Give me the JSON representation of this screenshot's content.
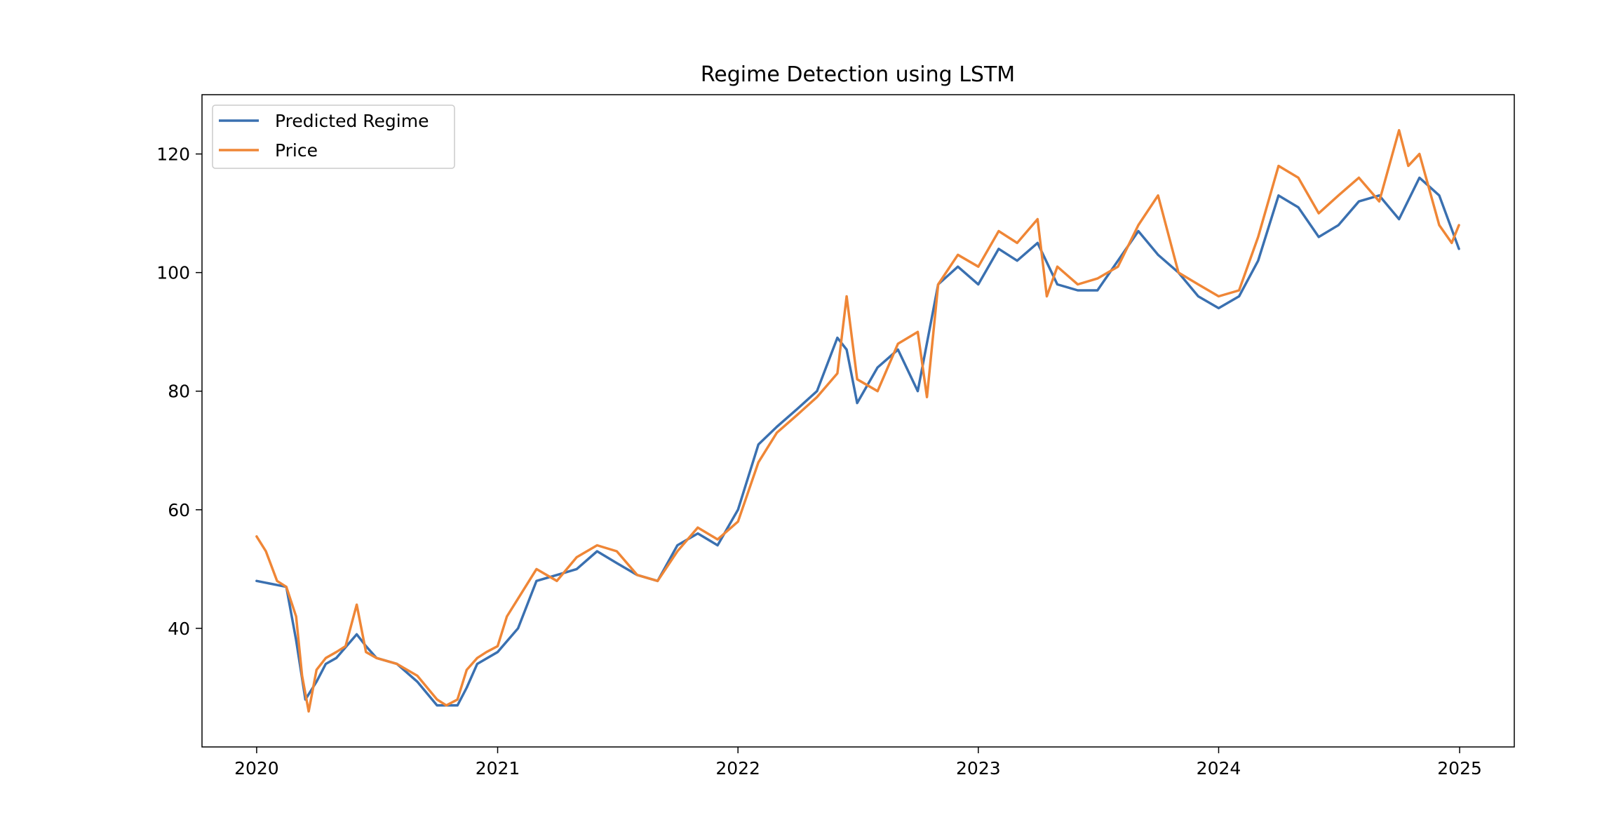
{
  "chart_data": {
    "type": "line",
    "title": "Regime Detection using LSTM",
    "xlabel": "",
    "ylabel": "",
    "x_axis": {
      "type": "time",
      "ticks": [
        "2020",
        "2021",
        "2022",
        "2023",
        "2024",
        "2025"
      ]
    },
    "y_axis": {
      "ticks": [
        "40",
        "60",
        "80",
        "100",
        "120"
      ],
      "ylim": [
        20,
        130
      ]
    },
    "xlim": [
      "2019-10-10",
      "2025-03-25"
    ],
    "grid": false,
    "legend": {
      "position": "top-left"
    },
    "series": [
      {
        "name": "Predicted Regime",
        "color": "#3a70b0",
        "x": [
          "2020-01-01",
          "2020-02-15",
          "2020-03-01",
          "2020-03-15",
          "2020-04-01",
          "2020-04-15",
          "2020-05-01",
          "2020-06-01",
          "2020-06-15",
          "2020-07-01",
          "2020-08-01",
          "2020-09-01",
          "2020-10-01",
          "2020-11-01",
          "2020-11-15",
          "2020-12-01",
          "2021-01-01",
          "2021-02-01",
          "2021-03-01",
          "2021-04-01",
          "2021-05-01",
          "2021-06-01",
          "2021-07-01",
          "2021-08-01",
          "2021-09-01",
          "2021-10-01",
          "2021-11-01",
          "2021-12-01",
          "2022-01-01",
          "2022-02-01",
          "2022-03-01",
          "2022-04-01",
          "2022-05-01",
          "2022-06-01",
          "2022-06-15",
          "2022-07-01",
          "2022-08-01",
          "2022-09-01",
          "2022-10-01",
          "2022-11-01",
          "2022-12-01",
          "2023-01-01",
          "2023-02-01",
          "2023-03-01",
          "2023-04-01",
          "2023-05-01",
          "2023-06-01",
          "2023-07-01",
          "2023-08-01",
          "2023-09-01",
          "2023-10-01",
          "2023-11-01",
          "2023-12-01",
          "2024-01-01",
          "2024-02-01",
          "2024-03-01",
          "2024-04-01",
          "2024-05-01",
          "2024-06-01",
          "2024-07-01",
          "2024-08-01",
          "2024-09-01",
          "2024-10-01",
          "2024-11-01",
          "2024-12-01",
          "2024-12-31"
        ],
        "y": [
          48,
          47,
          38,
          28,
          31,
          34,
          35,
          39,
          37,
          35,
          34,
          31,
          27,
          27,
          30,
          34,
          36,
          40,
          48,
          49,
          50,
          53,
          51,
          49,
          48,
          54,
          56,
          54,
          60,
          71,
          74,
          77,
          80,
          89,
          87,
          78,
          84,
          87,
          80,
          98,
          101,
          98,
          104,
          102,
          105,
          98,
          97,
          97,
          102,
          107,
          103,
          100,
          96,
          94,
          96,
          102,
          113,
          111,
          106,
          108,
          112,
          113,
          109,
          116,
          113,
          104
        ]
      },
      {
        "name": "Price",
        "color": "#ef8636",
        "x": [
          "2020-01-01",
          "2020-01-15",
          "2020-02-01",
          "2020-02-15",
          "2020-03-01",
          "2020-03-10",
          "2020-03-20",
          "2020-04-01",
          "2020-04-15",
          "2020-05-01",
          "2020-05-15",
          "2020-06-01",
          "2020-06-15",
          "2020-07-01",
          "2020-08-01",
          "2020-09-01",
          "2020-10-01",
          "2020-10-15",
          "2020-11-01",
          "2020-11-15",
          "2020-12-01",
          "2020-12-15",
          "2021-01-01",
          "2021-01-15",
          "2021-02-01",
          "2021-03-01",
          "2021-04-01",
          "2021-05-01",
          "2021-06-01",
          "2021-07-01",
          "2021-08-01",
          "2021-09-01",
          "2021-10-01",
          "2021-11-01",
          "2021-12-01",
          "2022-01-01",
          "2022-02-01",
          "2022-03-01",
          "2022-04-01",
          "2022-05-01",
          "2022-06-01",
          "2022-06-15",
          "2022-07-01",
          "2022-08-01",
          "2022-09-01",
          "2022-10-01",
          "2022-10-15",
          "2022-11-01",
          "2022-12-01",
          "2023-01-01",
          "2023-02-01",
          "2023-03-01",
          "2023-04-01",
          "2023-04-15",
          "2023-05-01",
          "2023-06-01",
          "2023-07-01",
          "2023-08-01",
          "2023-09-01",
          "2023-10-01",
          "2023-11-01",
          "2023-12-01",
          "2024-01-01",
          "2024-02-01",
          "2024-03-01",
          "2024-04-01",
          "2024-05-01",
          "2024-06-01",
          "2024-07-01",
          "2024-08-01",
          "2024-09-01",
          "2024-10-01",
          "2024-10-15",
          "2024-11-01",
          "2024-12-01",
          "2024-12-20",
          "2024-12-31"
        ],
        "y": [
          55.5,
          53,
          48,
          47,
          42,
          32,
          26,
          33,
          35,
          36,
          37,
          44,
          36,
          35,
          34,
          32,
          28,
          27,
          28,
          33,
          35,
          36,
          37,
          42,
          45,
          50,
          48,
          52,
          54,
          53,
          49,
          48,
          53,
          57,
          55,
          58,
          68,
          73,
          76,
          79,
          83,
          96,
          82,
          80,
          88,
          90,
          79,
          98,
          103,
          101,
          107,
          105,
          109,
          96,
          101,
          98,
          99,
          101,
          108,
          113,
          100,
          98,
          96,
          97,
          106,
          118,
          116,
          110,
          113,
          116,
          112,
          124,
          118,
          120,
          108,
          105,
          108
        ]
      }
    ]
  }
}
